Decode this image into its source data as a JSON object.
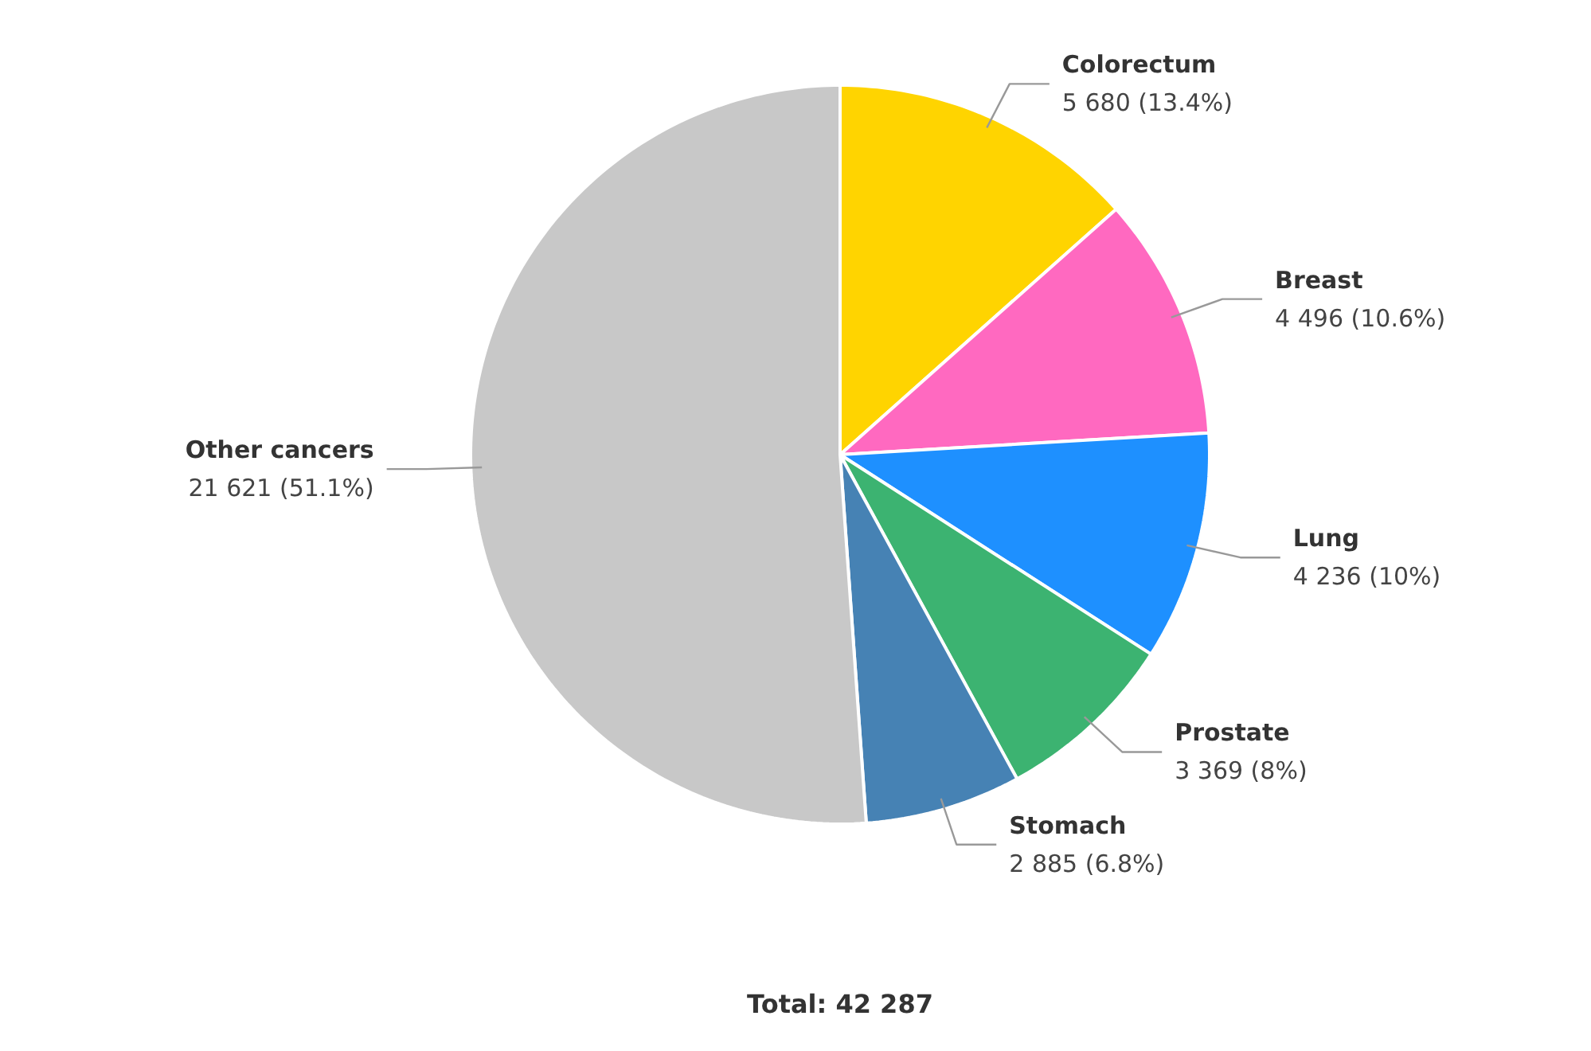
{
  "chart_data": {
    "type": "pie",
    "categories": [
      "Colorectum",
      "Breast",
      "Lung",
      "Prostate",
      "Stomach",
      "Other cancers"
    ],
    "values": [
      5680,
      4496,
      4236,
      3369,
      2885,
      21621
    ],
    "colors": [
      "#ffd400",
      "#ff69c0",
      "#1e90ff",
      "#3cb371",
      "#4682b4",
      "#c8c8c8"
    ],
    "value_labels": [
      "5 680 (13.4%)",
      "4 496 (10.6%)",
      "4 236 (10%)",
      "3 369 (8%)",
      "2 885 (6.8%)",
      "21 621 (51.1%)"
    ],
    "annotations": [
      "Total: 42 287"
    ]
  }
}
